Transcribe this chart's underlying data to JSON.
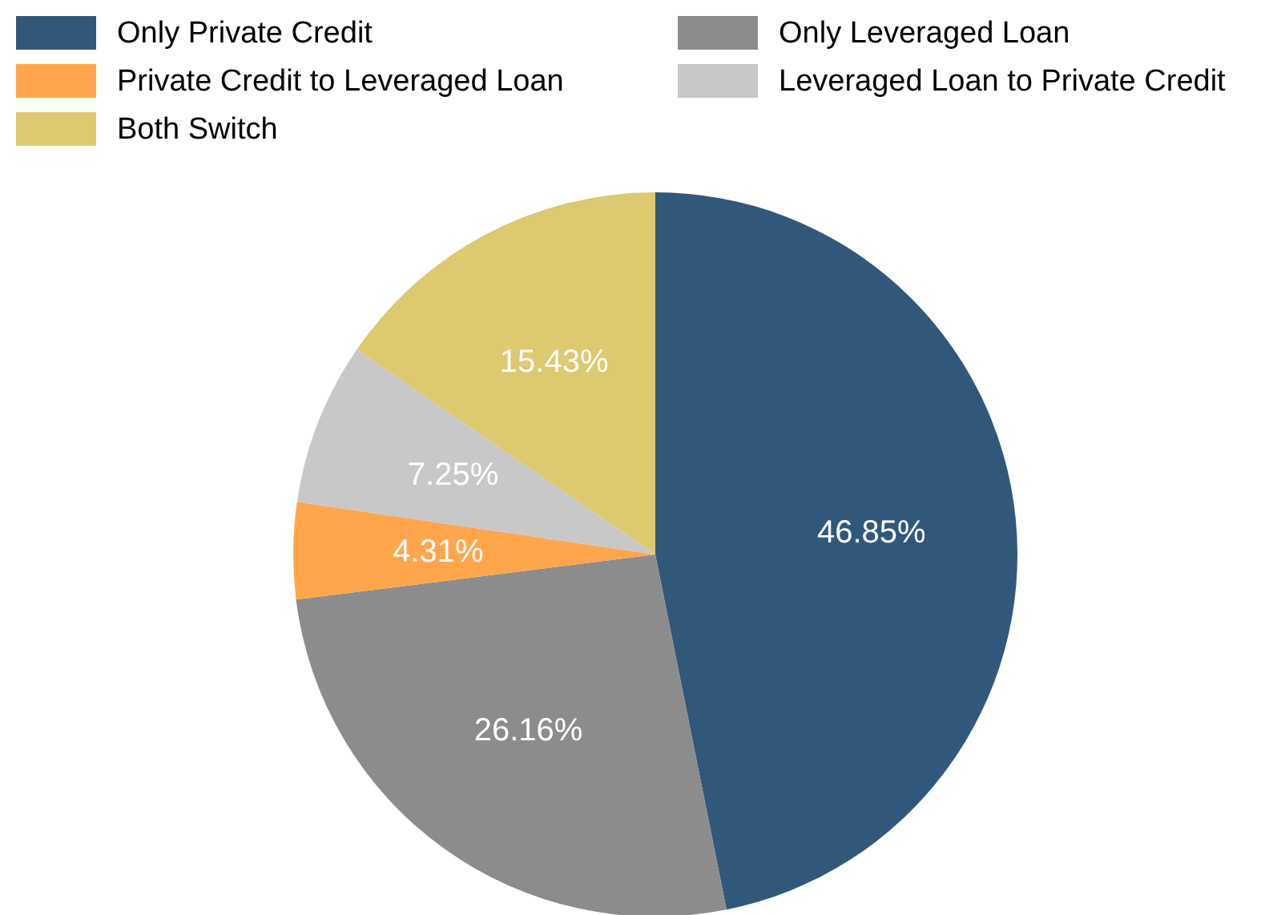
{
  "chart_data": {
    "type": "pie",
    "categories": [
      "Only Private Credit",
      "Only Leveraged Loan",
      "Private Credit to Leveraged Loan",
      "Leveraged Loan to Private Credit",
      "Both Switch"
    ],
    "values": [
      46.85,
      26.16,
      4.31,
      7.25,
      15.43
    ],
    "colors": [
      "#31587a",
      "#8c8c8c",
      "#ffa64d",
      "#c8c8c8",
      "#ddc970"
    ],
    "value_labels": [
      "46.85%",
      "26.16%",
      "4.31%",
      "7.25%",
      "15.43%"
    ],
    "legend": "top"
  }
}
